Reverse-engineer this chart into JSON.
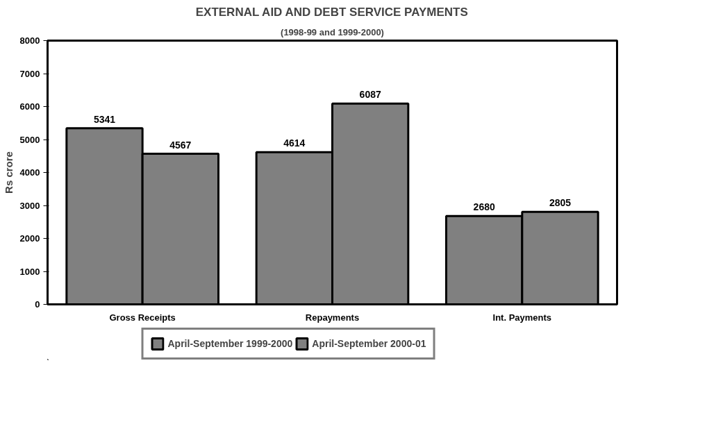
{
  "chart_data": {
    "type": "bar",
    "title": "EXTERNAL AID AND DEBT SERVICE PAYMENTS",
    "subtitle": "(1998-99 and 1999-2000)",
    "ylabel": "Rs crore",
    "categories": [
      "Gross Receipts",
      "Repayments",
      "Int. Payments"
    ],
    "series": [
      {
        "name": "April-September 1999-2000",
        "color": "#808080",
        "values": [
          5341,
          4614,
          2680
        ]
      },
      {
        "name": "April-September 2000-01",
        "color": "#808080",
        "values": [
          4567,
          6087,
          2805
        ]
      }
    ],
    "ylim": [
      0,
      8000
    ],
    "yticks": [
      0,
      1000,
      2000,
      3000,
      4000,
      5000,
      6000,
      7000,
      8000
    ],
    "grid": false,
    "legend": "bottom",
    "data_labels": true
  }
}
